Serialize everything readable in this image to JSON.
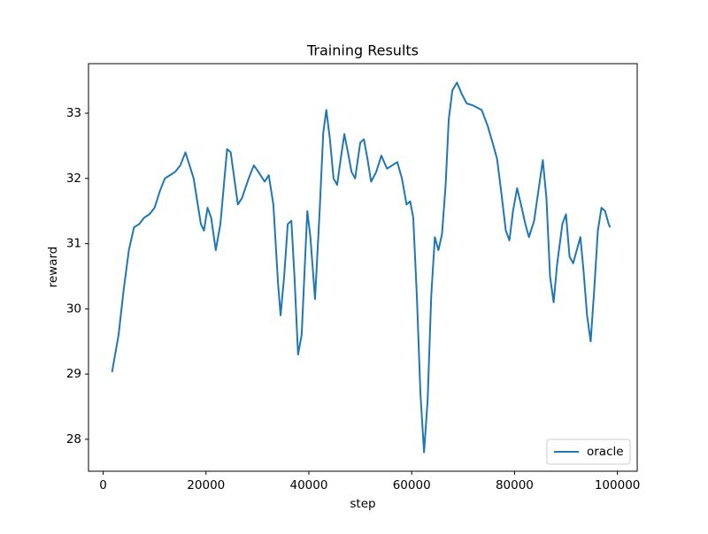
{
  "chart_data": {
    "type": "line",
    "title": "Training Results",
    "xlabel": "step",
    "ylabel": "reward",
    "series": [
      {
        "name": "oracle",
        "color": "#1f77b4",
        "x": [
          1724,
          3000,
          4000,
          5000,
          6000,
          7000,
          8000,
          9000,
          10000,
          11000,
          12000,
          13000,
          14000,
          15000,
          16000,
          17600,
          19000,
          19600,
          20300,
          21000,
          21900,
          22800,
          24100,
          24800,
          26200,
          27000,
          28300,
          29300,
          30200,
          31400,
          32200,
          33100,
          34000,
          34500,
          35200,
          35900,
          36600,
          37200,
          37900,
          38600,
          39700,
          40300,
          41200,
          42100,
          42800,
          43400,
          44100,
          44800,
          45500,
          46200,
          46900,
          47600,
          48300,
          49000,
          50000,
          50700,
          51400,
          52100,
          53100,
          54100,
          55200,
          56200,
          57200,
          58100,
          59000,
          59700,
          60300,
          61000,
          61700,
          62400,
          63100,
          63800,
          64500,
          65200,
          65900,
          66600,
          67200,
          67900,
          68800,
          69700,
          70700,
          71900,
          73600,
          74800,
          75900,
          76600,
          77400,
          78300,
          79000,
          79700,
          80500,
          81400,
          82100,
          82800,
          83800,
          84800,
          85500,
          86200,
          86900,
          87600,
          88300,
          89300,
          90000,
          90700,
          91400,
          92100,
          92800,
          93400,
          94100,
          94800,
          95500,
          96200,
          96900,
          97600,
          98300,
          98600
        ],
        "values": [
          29.03,
          29.6,
          30.3,
          30.9,
          31.25,
          31.3,
          31.4,
          31.45,
          31.55,
          31.8,
          32.0,
          32.05,
          32.1,
          32.2,
          32.4,
          32.0,
          31.3,
          31.2,
          31.55,
          31.4,
          30.9,
          31.3,
          32.45,
          32.4,
          31.6,
          31.7,
          32.0,
          32.2,
          32.1,
          31.95,
          32.05,
          31.6,
          30.4,
          29.9,
          30.5,
          31.3,
          31.35,
          30.5,
          29.3,
          29.6,
          31.5,
          31.1,
          30.15,
          31.5,
          32.7,
          33.05,
          32.6,
          32.0,
          31.9,
          32.3,
          32.68,
          32.4,
          32.1,
          32.0,
          32.55,
          32.6,
          32.3,
          31.95,
          32.1,
          32.35,
          32.15,
          32.2,
          32.25,
          32.0,
          31.6,
          31.65,
          31.4,
          30.2,
          28.7,
          27.8,
          28.6,
          30.2,
          31.1,
          30.9,
          31.15,
          31.9,
          32.9,
          33.35,
          33.47,
          33.3,
          33.15,
          33.12,
          33.05,
          32.8,
          32.5,
          32.3,
          31.8,
          31.2,
          31.05,
          31.5,
          31.85,
          31.55,
          31.3,
          31.1,
          31.35,
          31.9,
          32.28,
          31.7,
          30.5,
          30.1,
          30.7,
          31.3,
          31.45,
          30.8,
          30.7,
          30.9,
          31.1,
          30.6,
          29.9,
          29.5,
          30.3,
          31.2,
          31.55,
          31.5,
          31.3,
          31.25
        ]
      }
    ],
    "xlim": [
      -2850,
      103850
    ],
    "xticks": [
      0,
      20000,
      40000,
      60000,
      80000,
      100000
    ],
    "ylim": [
      27.51,
      33.76
    ],
    "yticks": [
      28,
      29,
      30,
      31,
      32,
      33
    ],
    "grid": false,
    "legend": "lower right"
  }
}
